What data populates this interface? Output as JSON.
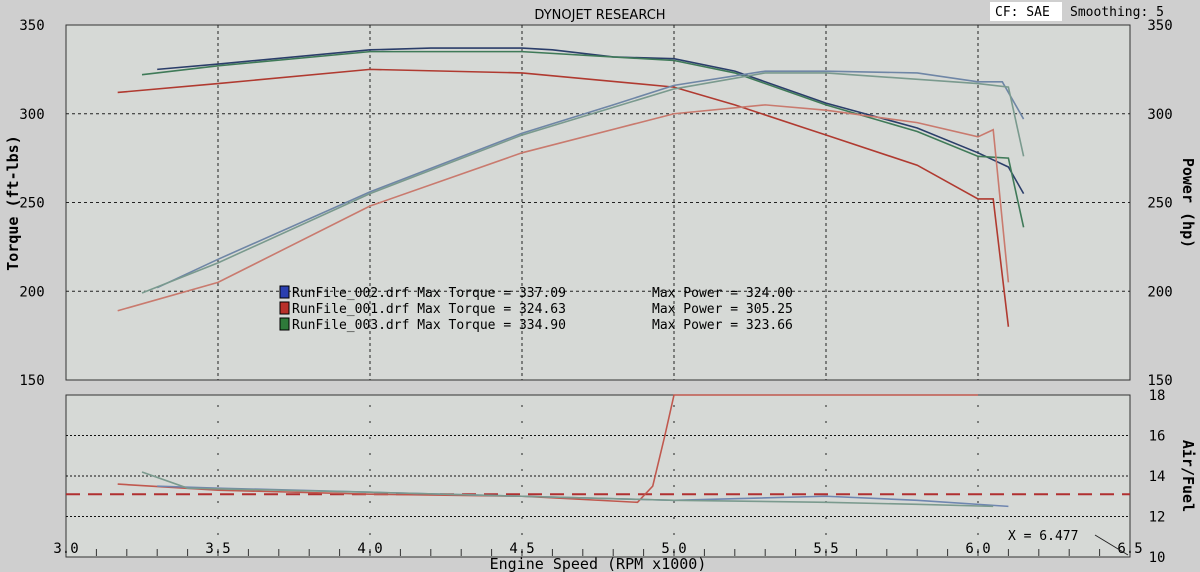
{
  "header": {
    "title": "DYNOJET RESEARCH",
    "cf": "CF: SAE",
    "smoothing": "Smoothing: 5"
  },
  "chart_data": [
    {
      "type": "line",
      "title": "DYNOJET RESEARCH",
      "xlabel": "Engine Speed (RPM x1000)",
      "ylabel": "Torque (ft-lbs)",
      "ylabel_right": "Power (hp)",
      "xlim": [
        3.0,
        6.5
      ],
      "ylim": [
        150,
        350
      ],
      "x_ticks": [
        "3.0",
        "3.5",
        "4.0",
        "4.5",
        "5.0",
        "5.5",
        "6.0",
        "6.5"
      ],
      "y_ticks": [
        "150",
        "200",
        "250",
        "300",
        "350"
      ],
      "grid": true,
      "legend": [
        {
          "color": "#2a3fb0",
          "text": "RunFile_002.drf Max Torque = 337.09",
          "power": "Max Power = 324.00"
        },
        {
          "color": "#b8302a",
          "text": "RunFile_001.drf Max Torque = 324.63",
          "power": "Max Power = 305.25"
        },
        {
          "color": "#2e7a3a",
          "text": "RunFile_003.drf Max Torque = 334.90",
          "power": "Max Power = 323.66"
        }
      ],
      "series": [
        {
          "name": "RunFile_002 Torque",
          "color": "#2b3e6a",
          "x": [
            3.3,
            3.5,
            4.0,
            4.2,
            4.5,
            4.6,
            4.8,
            5.0,
            5.2,
            5.5,
            5.8,
            6.0,
            6.1,
            6.15
          ],
          "y": [
            325,
            328,
            336,
            337,
            337,
            336,
            332,
            331,
            324,
            306,
            292,
            278,
            270,
            255
          ]
        },
        {
          "name": "RunFile_003 Torque",
          "color": "#3f7a58",
          "x": [
            3.25,
            3.5,
            4.0,
            4.5,
            5.0,
            5.2,
            5.5,
            5.8,
            6.0,
            6.1,
            6.15
          ],
          "y": [
            322,
            327,
            335,
            335,
            330,
            323,
            305,
            290,
            276,
            275,
            236
          ]
        },
        {
          "name": "RunFile_001 Torque",
          "color": "#b03a30",
          "x": [
            3.17,
            3.5,
            4.0,
            4.5,
            5.0,
            5.2,
            5.5,
            5.8,
            6.0,
            6.05,
            6.1
          ],
          "y": [
            312,
            317,
            325,
            323,
            315,
            305,
            288,
            271,
            252,
            252,
            180
          ]
        },
        {
          "name": "RunFile_002 Power",
          "color": "#6f86a6",
          "x": [
            3.3,
            3.5,
            4.0,
            4.5,
            4.8,
            5.0,
            5.3,
            5.5,
            5.8,
            6.0,
            6.08,
            6.15
          ],
          "y": [
            202,
            218,
            256,
            289,
            305,
            316,
            324,
            324,
            323,
            318,
            318,
            297
          ]
        },
        {
          "name": "RunFile_003 Power",
          "color": "#7a9a8e",
          "x": [
            3.25,
            3.5,
            4.0,
            4.5,
            5.0,
            5.3,
            5.5,
            6.0,
            6.1,
            6.15
          ],
          "y": [
            199,
            216,
            255,
            288,
            314,
            323,
            323,
            317,
            315,
            276
          ]
        },
        {
          "name": "RunFile_001 Power",
          "color": "#c97a6e",
          "x": [
            3.17,
            3.5,
            4.0,
            4.5,
            5.0,
            5.3,
            5.5,
            5.8,
            6.0,
            6.05,
            6.1
          ],
          "y": [
            189,
            205,
            248,
            278,
            300,
            305,
            302,
            295,
            287,
            291,
            205
          ]
        }
      ]
    },
    {
      "type": "line",
      "ylabel": "Air/Fuel",
      "xlim": [
        3.0,
        6.5
      ],
      "ylim": [
        10,
        18
      ],
      "y_ticks": [
        "10",
        "12",
        "14",
        "16",
        "18"
      ],
      "reference_line": 13.1,
      "annotation": "X = 6.477",
      "series": [
        {
          "name": "RunFile_001 AFR",
          "color": "#c0584e",
          "x": [
            3.17,
            3.5,
            4.0,
            4.5,
            4.88,
            4.93,
            4.97,
            5.0,
            6.0
          ],
          "y": [
            13.6,
            13.3,
            13.1,
            13.0,
            12.7,
            13.5,
            16,
            18,
            18
          ]
        },
        {
          "name": "RunFile_002 AFR",
          "color": "#6f86b0",
          "x": [
            3.3,
            3.5,
            4.0,
            4.5,
            5.0,
            5.5,
            5.8,
            6.1
          ],
          "y": [
            13.5,
            13.4,
            13.2,
            13.0,
            12.8,
            13.0,
            12.8,
            12.5
          ]
        },
        {
          "name": "RunFile_003 AFR",
          "color": "#7a9a8e",
          "x": [
            3.25,
            3.4,
            4.0,
            4.5,
            5.0,
            5.5,
            5.8,
            6.05
          ],
          "y": [
            14.2,
            13.4,
            13.2,
            13.0,
            12.8,
            12.7,
            12.6,
            12.5
          ]
        }
      ]
    }
  ]
}
